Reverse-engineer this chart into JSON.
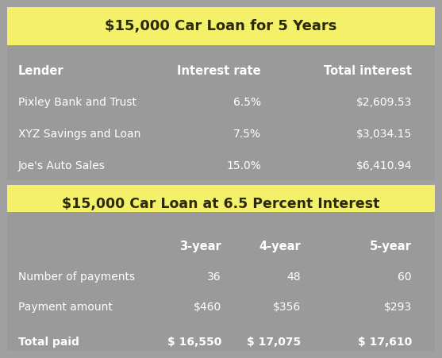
{
  "title1": "$15,000 Car Loan for 5 Years",
  "title2": "$15,000 Car Loan at 6.5 Percent Interest",
  "table1_headers": [
    "Lender",
    "Interest rate",
    "Total interest"
  ],
  "table1_rows": [
    [
      "Pixley Bank and Trust",
      "6.5%",
      "$2,609.53"
    ],
    [
      "XYZ Savings and Loan",
      "7.5%",
      "$3,034.15"
    ],
    [
      "Joe's Auto Sales",
      "15.0%",
      "$6,410.94"
    ]
  ],
  "table2_headers": [
    "",
    "3-year",
    "4-year",
    "5-year"
  ],
  "table2_rows": [
    [
      "Number of payments",
      "36",
      "48",
      "60"
    ],
    [
      "Payment amount",
      "$460",
      "$356",
      "$293"
    ],
    [
      "Total paid",
      "$ 16,550",
      "$ 17,075",
      "$ 17,610"
    ]
  ],
  "bg_outer": "#a0a0a0",
  "bg_header": "#f5f06a",
  "bg_table": "#9a9a9a",
  "text_white": "#ffffff",
  "text_dark": "#2a2a0a"
}
